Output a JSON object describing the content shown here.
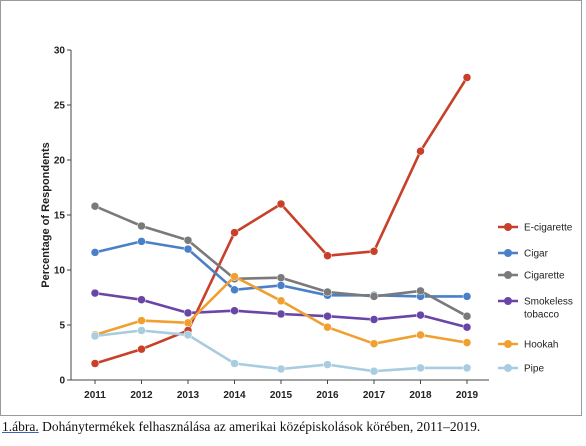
{
  "chart_data": {
    "type": "line",
    "ylabel": "Percentage of Respondents",
    "xlabel": "",
    "title": "",
    "x": [
      2011,
      2012,
      2013,
      2014,
      2015,
      2016,
      2017,
      2018,
      2019
    ],
    "x_ticks": [
      "2011",
      "2012",
      "2013",
      "2014",
      "2015",
      "2016",
      "2017",
      "2018",
      "2019"
    ],
    "ylim": [
      0,
      30
    ],
    "y_ticks": [
      "0",
      "5",
      "10",
      "15",
      "20",
      "25",
      "30"
    ],
    "y_tick_values": [
      0,
      5,
      10,
      15,
      20,
      25,
      30
    ],
    "grid": false,
    "legend_position": "right",
    "series": [
      {
        "name": "E-cigarette",
        "color": "#c8402a",
        "values": [
          1.5,
          2.8,
          4.5,
          13.4,
          16.0,
          11.3,
          11.7,
          20.8,
          27.5
        ]
      },
      {
        "name": "Cigar",
        "color": "#4a80c8",
        "values": [
          11.6,
          12.6,
          11.9,
          8.2,
          8.6,
          7.7,
          7.7,
          7.6,
          7.6
        ]
      },
      {
        "name": "Cigarette",
        "color": "#7a7a7a",
        "values": [
          15.8,
          14.0,
          12.7,
          9.2,
          9.3,
          8.0,
          7.6,
          8.1,
          5.8
        ]
      },
      {
        "name": "Smokeless tobacco",
        "color": "#6a45a8",
        "values": [
          7.9,
          7.3,
          6.1,
          6.3,
          6.0,
          5.8,
          5.5,
          5.9,
          4.8
        ]
      },
      {
        "name": "Hookah",
        "color": "#f0a030",
        "values": [
          4.1,
          5.4,
          5.2,
          9.4,
          7.2,
          4.8,
          3.3,
          4.1,
          3.4
        ]
      },
      {
        "name": "Pipe",
        "color": "#a8cce0",
        "values": [
          4.0,
          4.5,
          4.1,
          1.5,
          1.0,
          1.4,
          0.8,
          1.1,
          1.1
        ]
      }
    ],
    "legend_lines": [
      [
        "E-cigarette"
      ],
      [
        "Cigar"
      ],
      [
        "Cigarette"
      ],
      [
        "Smokeless",
        "tobacco"
      ],
      [
        "Hookah"
      ],
      [
        "Pipe"
      ]
    ]
  },
  "caption": {
    "prefix": "1.ábra.",
    "text": " Dohánytermékek felhasználása az amerikai középiskolások körében, 2011–2019."
  }
}
